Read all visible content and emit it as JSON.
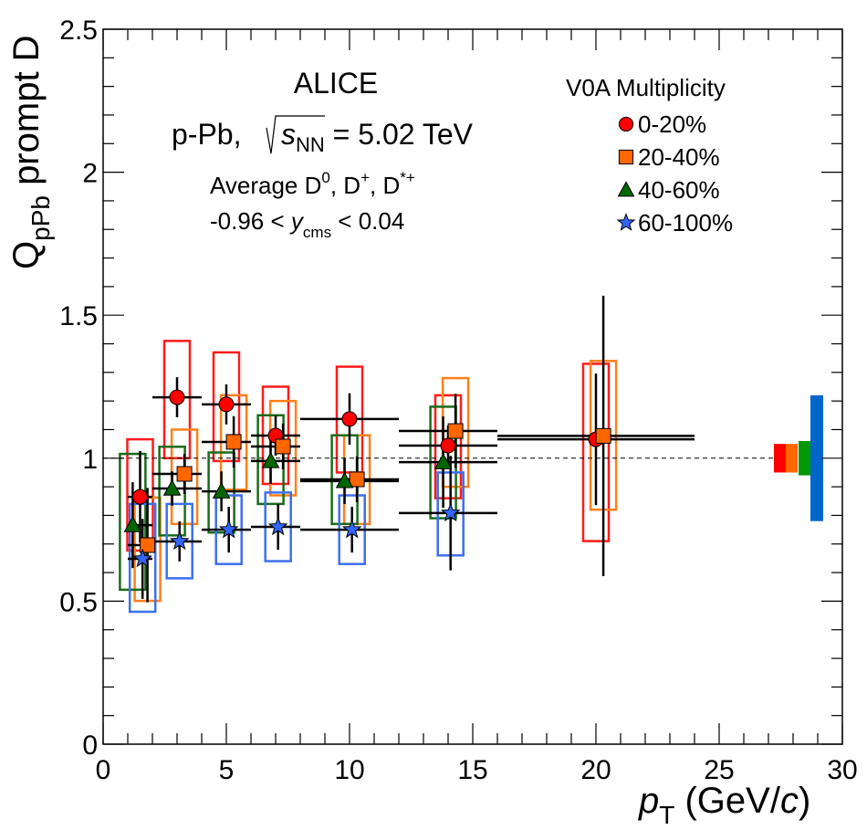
{
  "chart_data": {
    "type": "scatter",
    "title": "",
    "xlabel": "p_T (GeV/c)",
    "xlabel_parts": {
      "main": "p",
      "sub": "T",
      "rest": " (GeV/",
      "italic_c": "c",
      "close": ")"
    },
    "ylabel": "Q_pPb prompt D",
    "ylabel_parts": {
      "main": "Q",
      "sub": "pPb",
      "rest": " prompt D"
    },
    "xlim": [
      0,
      30
    ],
    "ylim": [
      0,
      2.5
    ],
    "x_ticks": [
      "0",
      "5",
      "10",
      "15",
      "20",
      "25",
      "30"
    ],
    "y_ticks": [
      "0",
      "0.5",
      "1",
      "1.5",
      "2",
      "2.5"
    ],
    "reference_line": 1,
    "annotations": {
      "experiment": "ALICE",
      "system_prefix": "p-Pb, ",
      "energy_var": "s",
      "energy_sub": "NN",
      "energy_value": " = 5.02 TeV",
      "species_prefix": "Average D",
      "species_d0_sup": "0",
      "species_dplus": ", D",
      "species_dplus_sup": "+",
      "species_dstar": ", D",
      "species_dstar_sup": "*+",
      "rapidity_left": "-0.96 < ",
      "rapidity_var": "y",
      "rapidity_sub": "cms",
      "rapidity_right": " < 0.04"
    },
    "legend": {
      "title": "V0A Multiplicity",
      "placement": "top-right"
    },
    "bins": [
      [
        1,
        2
      ],
      [
        2,
        4
      ],
      [
        4,
        6
      ],
      [
        6,
        8
      ],
      [
        8,
        12
      ],
      [
        12,
        16
      ],
      [
        16,
        24
      ]
    ],
    "series": [
      {
        "name": "0-20%",
        "marker": "circle",
        "color": "#ff0000",
        "box_color": "#ff1a1a",
        "x": [
          1.5,
          3.0,
          5.0,
          7.0,
          10.0,
          14.0,
          20.0
        ],
        "y": [
          0.865,
          1.213,
          1.188,
          1.079,
          1.137,
          1.044,
          1.066
        ],
        "stat_err": [
          0.16,
          0.07,
          0.07,
          0.07,
          0.09,
          0.07,
          0.23
        ],
        "sys_low": [
          0.677,
          1.0,
          0.99,
          0.91,
          0.95,
          0.86,
          0.71
        ],
        "sys_high": [
          1.066,
          1.41,
          1.37,
          1.25,
          1.32,
          1.22,
          1.33
        ],
        "xerr_left": [
          0.5,
          1.0,
          1.0,
          1.0,
          2.0,
          2.0,
          4.0
        ],
        "xerr_right": [
          0.5,
          1.0,
          1.0,
          1.0,
          2.0,
          2.0,
          4.0
        ],
        "norm_unc": 0.05
      },
      {
        "name": "20-40%",
        "marker": "square",
        "color": "#ff6600",
        "box_color": "#ff7f1a",
        "x": [
          1.8,
          3.3,
          5.3,
          7.3,
          10.3,
          14.3,
          20.3
        ],
        "y": [
          0.696,
          0.945,
          1.057,
          1.041,
          0.926,
          1.095,
          1.078
        ],
        "stat_err": [
          0.2,
          0.07,
          0.09,
          0.08,
          0.08,
          0.13,
          0.49
        ],
        "sys_low": [
          0.501,
          0.77,
          0.89,
          0.87,
          0.77,
          0.9,
          0.82
        ],
        "sys_high": [
          0.862,
          1.1,
          1.22,
          1.2,
          1.08,
          1.28,
          1.34
        ],
        "xerr_left": [
          0.8,
          1.3,
          1.3,
          1.3,
          2.3,
          2.3,
          4.3
        ],
        "xerr_right": [
          0.2,
          0.7,
          0.7,
          0.7,
          1.7,
          1.7,
          3.7
        ],
        "norm_unc": 0.05
      },
      {
        "name": "40-60%",
        "marker": "triangle",
        "color": "#006600",
        "box_color": "#1a6b1a",
        "x": [
          1.2,
          2.8,
          4.8,
          6.8,
          9.8,
          13.8
        ],
        "y": [
          0.766,
          0.894,
          0.884,
          0.99,
          0.92,
          0.986
        ],
        "stat_err": [
          0.15,
          0.06,
          0.07,
          0.08,
          0.08,
          0.16
        ],
        "sys_low": [
          0.54,
          0.73,
          0.74,
          0.84,
          0.77,
          0.79
        ],
        "sys_high": [
          1.015,
          1.04,
          1.02,
          1.15,
          1.08,
          1.18
        ],
        "xerr_left": [
          0.2,
          0.8,
          0.8,
          0.8,
          1.8,
          1.8
        ],
        "xerr_right": [
          0.8,
          1.2,
          1.2,
          1.2,
          2.2,
          2.2
        ],
        "norm_unc": 0.06
      },
      {
        "name": "60-100%",
        "marker": "star",
        "color": "#3366ff",
        "box_color": "#3d6ff0",
        "x": [
          1.6,
          3.1,
          5.1,
          7.1,
          10.1,
          14.1
        ],
        "y": [
          0.648,
          0.709,
          0.75,
          0.76,
          0.75,
          0.808
        ],
        "stat_err": [
          0.14,
          0.07,
          0.08,
          0.08,
          0.08,
          0.2
        ],
        "sys_low": [
          0.463,
          0.58,
          0.63,
          0.64,
          0.63,
          0.66
        ],
        "sys_high": [
          0.84,
          0.84,
          0.87,
          0.88,
          0.87,
          0.95
        ],
        "xerr_left": [
          0.6,
          1.1,
          1.1,
          1.1,
          2.1,
          2.1
        ],
        "xerr_right": [
          0.4,
          0.9,
          0.9,
          0.9,
          1.9,
          1.9
        ],
        "norm_unc": 0.22
      }
    ],
    "norm_colors": [
      "#ff0000",
      "#ff6600",
      "#009900",
      "#0066cc"
    ]
  }
}
